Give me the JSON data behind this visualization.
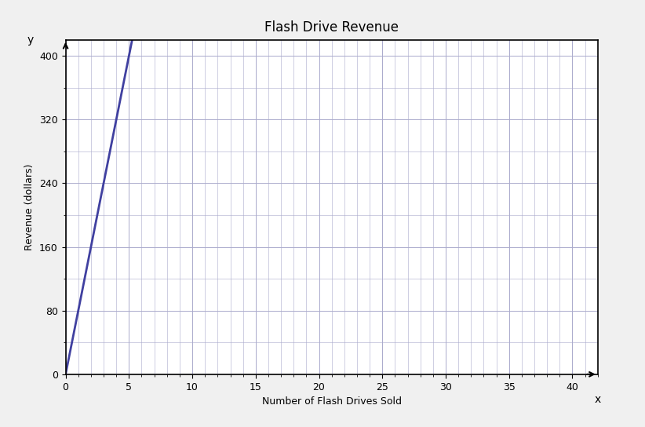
{
  "title": "Flash Drive Revenue",
  "xlabel": "Number of Flash Drives Sold",
  "ylabel": "Revenue (dollars)",
  "x_ticks": [
    0,
    5,
    10,
    15,
    20,
    25,
    30,
    35,
    40
  ],
  "y_ticks": [
    0,
    80,
    160,
    240,
    320,
    400
  ],
  "xlim": [
    0,
    42
  ],
  "ylim": [
    0,
    420
  ],
  "line_x": [
    0,
    5
  ],
  "line_y": [
    0,
    400
  ],
  "line_color": "#4040a0",
  "line_width": 2.0,
  "grid_color": "#aaaacc",
  "bg_color": "#ffffff",
  "title_fontsize": 12,
  "label_fontsize": 9,
  "tick_fontsize": 9
}
